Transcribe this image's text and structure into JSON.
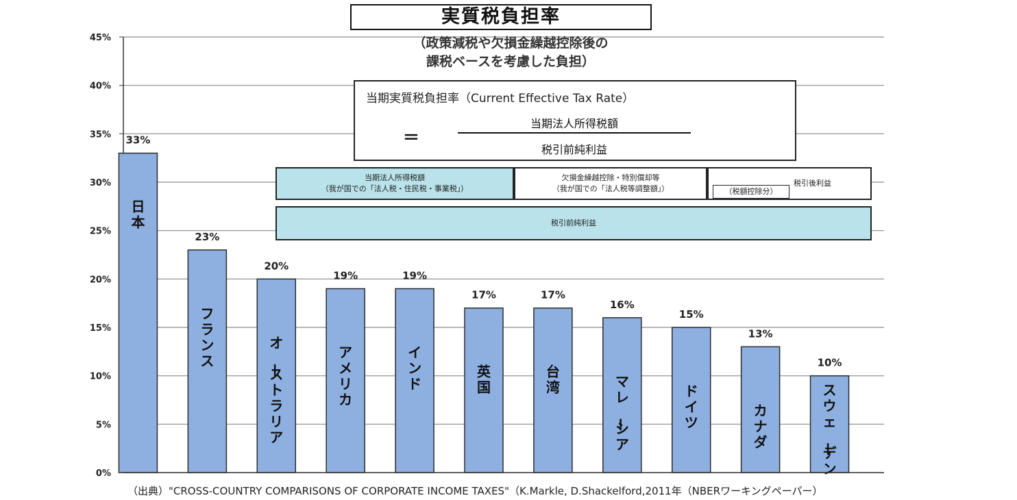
{
  "title": "実質税負担率",
  "subtitle_lines": [
    "（政策減税や欠損金繰越控除後の",
    "課税ベースを考慮した負担）"
  ],
  "formula": {
    "title": "当期実質税負担率（Current  Effective Tax Rate）",
    "equals": "＝",
    "numerator": "当期法人所得税額",
    "denominator": "税引前純利益"
  },
  "breakdown": {
    "box1_line1": "当期法人所得税額",
    "box1_line2": "（我が国での「法人税・住民税・事業税」）",
    "box2_line1": "欠損金繰越控除・特別償却等",
    "box2_line2": "（我が国での「法人税等調整額」）",
    "box3_inner": "（税額控除分）",
    "box3_right": "税引後利益",
    "box4": "税引前純利益"
  },
  "source": "（出典）\"CROSS-COUNTRY COMPARISONS OF CORPORATE INCOME TAXES\"（K.Markle, D.Shackelford,2011年（NBERワーキングペーパー）",
  "colors": {
    "bar_fill": "#8eb0e0",
    "bar_stroke": "#2b2b2b",
    "grid": "#8a8a8a",
    "box_fill": "#b9e2ea"
  },
  "chart_data": {
    "type": "bar",
    "title": "実質税負担率",
    "categories": [
      "日本",
      "フランス",
      "オーストラリア",
      "アメリカ",
      "インド",
      "英国",
      "台湾",
      "マレーシア",
      "ドイツ",
      "カナダ",
      "スウェーデン"
    ],
    "values": [
      33,
      23,
      20,
      19,
      19,
      17,
      17,
      16,
      15,
      13,
      10
    ],
    "data_labels": [
      "33%",
      "23%",
      "20%",
      "19%",
      "19%",
      "17%",
      "17%",
      "16%",
      "15%",
      "13%",
      "10%"
    ],
    "y_ticks": [
      "0%",
      "5%",
      "10%",
      "15%",
      "20%",
      "25%",
      "30%",
      "35%",
      "40%",
      "45%"
    ],
    "ylim": [
      0,
      45
    ],
    "grid": true,
    "xlabel": "",
    "ylabel": ""
  }
}
